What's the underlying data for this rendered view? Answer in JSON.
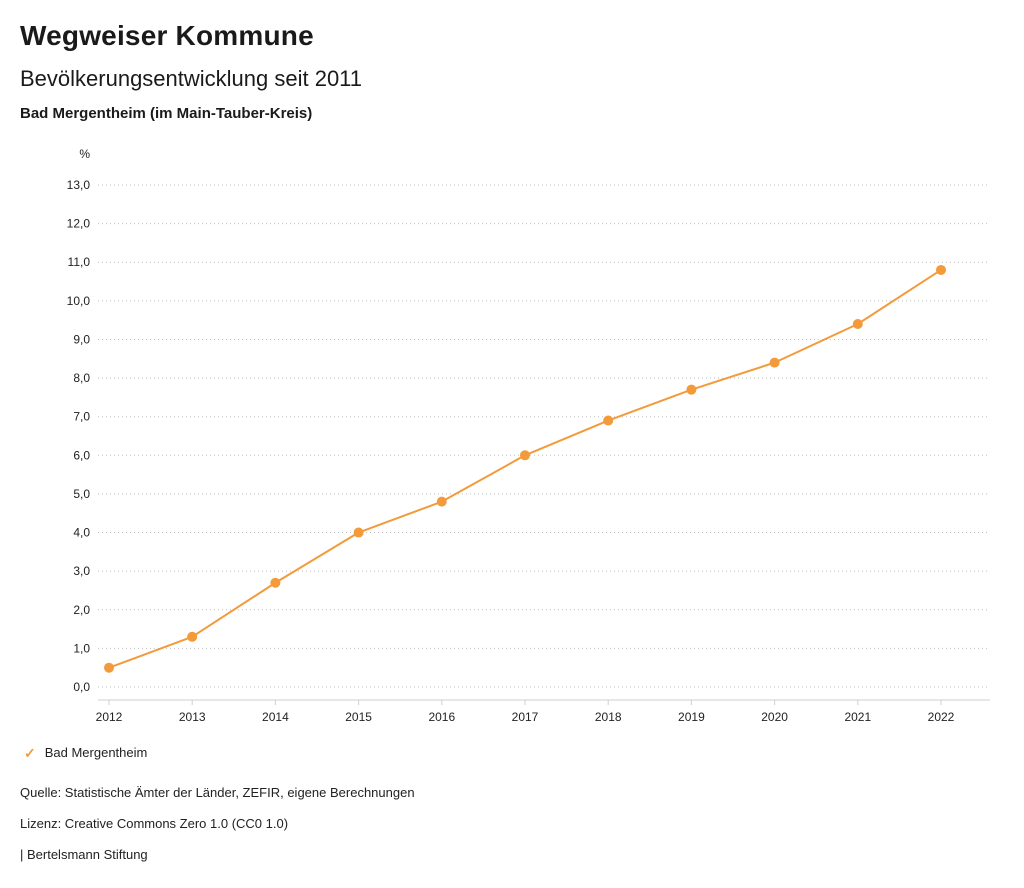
{
  "header": {
    "title": "Wegweiser Kommune",
    "subtitle": "Bevölkerungsentwicklung seit 2011",
    "location": "Bad Mergentheim (im Main-Tauber-Kreis)"
  },
  "chart_data": {
    "type": "line",
    "title": "Bevölkerungsentwicklung seit 2011",
    "subtitle": "Bad Mergentheim (im Main-Tauber-Kreis)",
    "ylabel": "%",
    "xlabel": "",
    "categories": [
      "2012",
      "2013",
      "2014",
      "2015",
      "2016",
      "2017",
      "2018",
      "2019",
      "2020",
      "2021",
      "2022"
    ],
    "series": [
      {
        "name": "Bad Mergentheim",
        "color": "#f39a3b",
        "values": [
          0.5,
          1.3,
          2.7,
          4.0,
          4.8,
          6.0,
          6.9,
          7.7,
          8.4,
          9.4,
          10.8
        ]
      }
    ],
    "ylim": [
      0,
      13
    ],
    "ytick_step": 1.0,
    "grid": true,
    "legend_position": "bottom"
  },
  "legend": {
    "check_icon": "✓",
    "label": "Bad Mergentheim"
  },
  "footer": {
    "source": "Quelle: Statistische Ämter der Länder, ZEFIR, eigene Berechnungen",
    "license": "Lizenz: Creative Commons Zero 1.0 (CC0 1.0)",
    "attribution": "| Bertelsmann Stiftung"
  }
}
